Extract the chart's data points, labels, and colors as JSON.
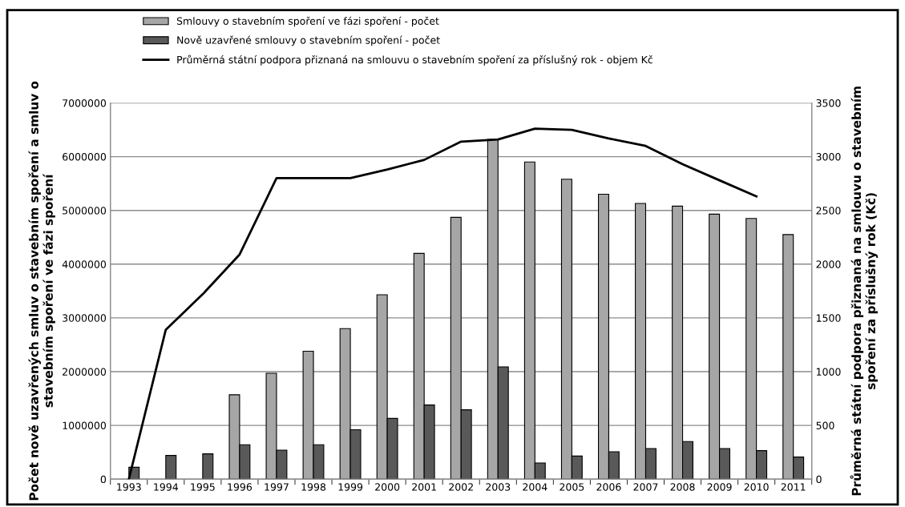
{
  "chart_data": {
    "type": "bar",
    "categories": [
      "1993",
      "1994",
      "1995",
      "1996",
      "1997",
      "1998",
      "1999",
      "2000",
      "2001",
      "2002",
      "2003",
      "2004",
      "2005",
      "2006",
      "2007",
      "2008",
      "2009",
      "2010",
      "2011"
    ],
    "series": [
      {
        "name": "Smlouvy o stavebním spoření ve fázi spoření - počet",
        "color": "#a6a6a6",
        "values": [
          null,
          null,
          null,
          1570000,
          1970000,
          2380000,
          2800000,
          3430000,
          4200000,
          4870000,
          6320000,
          5900000,
          5580000,
          5300000,
          5130000,
          5080000,
          4930000,
          4850000,
          4550000
        ]
      },
      {
        "name": "Nově uzavřené smlouvy o stavebním spoření - počet",
        "color": "#595959",
        "type": "bar",
        "values": [
          220000,
          440000,
          470000,
          640000,
          540000,
          640000,
          920000,
          1130000,
          1380000,
          1290000,
          2090000,
          300000,
          430000,
          510000,
          570000,
          700000,
          570000,
          530000,
          410000
        ]
      },
      {
        "name": "Průměrná státní podpora přiznaná na smlouvu o stavebním spoření za příslušný rok - objem Kč",
        "color": "#000000",
        "type": "line",
        "axis": "y2",
        "values": [
          0,
          1390,
          1720,
          2090,
          2800,
          2800,
          2800,
          2880,
          2970,
          3140,
          3160,
          3260,
          3250,
          3170,
          3100,
          2930,
          2780,
          2630,
          null
        ]
      }
    ],
    "ylabel": "Počet nově uzavřených smluv o stavebním spoření a smluv o stavebním spoření ve fázi spoření",
    "y2label": "Průměrná státní podpora přiznaná na smlouvu o stavebním spoření za příslušný rok (Kč)",
    "ylim": [
      0,
      7000000
    ],
    "yticks": [
      0,
      1000000,
      2000000,
      3000000,
      4000000,
      5000000,
      6000000,
      7000000
    ],
    "y2lim": [
      0,
      3500
    ],
    "y2ticks": [
      0,
      500,
      1000,
      1500,
      2000,
      2500,
      3000,
      3500
    ],
    "grid": "y",
    "legend": "top",
    "marker": "none",
    "line_style": "solid"
  }
}
